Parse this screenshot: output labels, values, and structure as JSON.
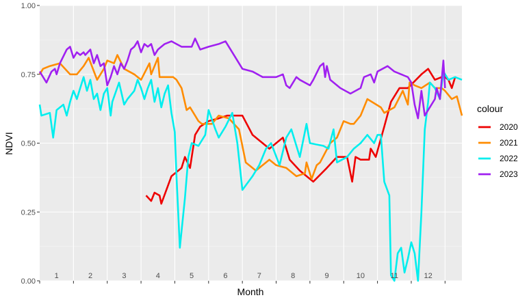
{
  "chart_data": {
    "type": "line",
    "xlabel": "Month",
    "ylabel": "NDVI",
    "xlim": [
      0,
      12.5
    ],
    "ylim": [
      0,
      1
    ],
    "y_ticks": [
      "0.00",
      "0.25",
      "0.50",
      "0.75",
      "1.00"
    ],
    "y_tick_values": [
      0,
      0.25,
      0.5,
      0.75,
      1
    ],
    "month_labels": [
      "1",
      "2",
      "3",
      "4",
      "5",
      "6",
      "7",
      "8",
      "9",
      "10",
      "11",
      "12"
    ],
    "grid": true,
    "legend": {
      "title": "colour",
      "placement": "right"
    },
    "series": [
      {
        "name": "2020",
        "color": "#ee0000",
        "points": [
          [
            3.15,
            0.31
          ],
          [
            3.3,
            0.29
          ],
          [
            3.4,
            0.32
          ],
          [
            3.55,
            0.31
          ],
          [
            3.6,
            0.28
          ],
          [
            3.9,
            0.38
          ],
          [
            4.2,
            0.41
          ],
          [
            4.3,
            0.45
          ],
          [
            4.45,
            0.41
          ],
          [
            4.6,
            0.53
          ],
          [
            4.75,
            0.56
          ],
          [
            5.0,
            0.58
          ],
          [
            5.3,
            0.59
          ],
          [
            5.55,
            0.6
          ],
          [
            6.0,
            0.6
          ],
          [
            6.3,
            0.53
          ],
          [
            6.6,
            0.5
          ],
          [
            6.8,
            0.48
          ],
          [
            7.2,
            0.52
          ],
          [
            7.4,
            0.44
          ],
          [
            7.7,
            0.4
          ],
          [
            8.1,
            0.36
          ],
          [
            8.5,
            0.41
          ],
          [
            8.8,
            0.45
          ],
          [
            9.1,
            0.45
          ],
          [
            9.25,
            0.36
          ],
          [
            9.35,
            0.45
          ],
          [
            9.5,
            0.44
          ],
          [
            9.75,
            0.44
          ],
          [
            9.8,
            0.48
          ],
          [
            9.95,
            0.45
          ],
          [
            10.2,
            0.56
          ],
          [
            10.4,
            0.65
          ],
          [
            10.65,
            0.7
          ],
          [
            10.9,
            0.7
          ],
          [
            11.3,
            0.75
          ],
          [
            11.5,
            0.77
          ],
          [
            11.7,
            0.73
          ],
          [
            11.9,
            0.74
          ],
          [
            12.0,
            0.74
          ],
          [
            12.1,
            0.73
          ],
          [
            12.2,
            0.7
          ],
          [
            12.3,
            0.74
          ]
        ]
      },
      {
        "name": "2021",
        "color": "#ff8c00",
        "points": [
          [
            0,
            0.75
          ],
          [
            0.1,
            0.77
          ],
          [
            0.3,
            0.78
          ],
          [
            0.6,
            0.79
          ],
          [
            0.9,
            0.75
          ],
          [
            1.1,
            0.75
          ],
          [
            1.3,
            0.78
          ],
          [
            1.45,
            0.81
          ],
          [
            1.7,
            0.73
          ],
          [
            1.9,
            0.77
          ],
          [
            2.0,
            0.8
          ],
          [
            2.2,
            0.79
          ],
          [
            2.3,
            0.82
          ],
          [
            2.5,
            0.77
          ],
          [
            2.8,
            0.75
          ],
          [
            3.0,
            0.73
          ],
          [
            3.25,
            0.79
          ],
          [
            3.3,
            0.75
          ],
          [
            3.5,
            0.81
          ],
          [
            3.55,
            0.74
          ],
          [
            3.95,
            0.74
          ],
          [
            4.05,
            0.73
          ],
          [
            4.2,
            0.7
          ],
          [
            4.35,
            0.62
          ],
          [
            4.45,
            0.63
          ],
          [
            4.6,
            0.6
          ],
          [
            4.7,
            0.58
          ],
          [
            4.8,
            0.57
          ],
          [
            5.1,
            0.57
          ],
          [
            5.3,
            0.6
          ],
          [
            5.6,
            0.59
          ],
          [
            5.9,
            0.55
          ],
          [
            6.1,
            0.43
          ],
          [
            6.4,
            0.4
          ],
          [
            6.8,
            0.44
          ],
          [
            7.0,
            0.42
          ],
          [
            7.3,
            0.41
          ],
          [
            7.6,
            0.38
          ],
          [
            7.85,
            0.39
          ],
          [
            7.9,
            0.43
          ],
          [
            8.05,
            0.37
          ],
          [
            8.2,
            0.42
          ],
          [
            8.3,
            0.43
          ],
          [
            8.6,
            0.5
          ],
          [
            8.8,
            0.52
          ],
          [
            9.0,
            0.58
          ],
          [
            9.2,
            0.57
          ],
          [
            9.3,
            0.57
          ],
          [
            9.5,
            0.6
          ],
          [
            9.7,
            0.66
          ],
          [
            10.1,
            0.63
          ],
          [
            10.2,
            0.61
          ],
          [
            10.5,
            0.63
          ],
          [
            10.75,
            0.69
          ],
          [
            10.9,
            0.64
          ],
          [
            10.95,
            0.72
          ],
          [
            11.1,
            0.71
          ],
          [
            11.3,
            0.7
          ],
          [
            11.55,
            0.72
          ],
          [
            11.7,
            0.7
          ],
          [
            11.9,
            0.7
          ],
          [
            12.0,
            0.69
          ],
          [
            12.2,
            0.66
          ],
          [
            12.35,
            0.67
          ],
          [
            12.5,
            0.6
          ]
        ]
      },
      {
        "name": "2022",
        "color": "#00eeee",
        "points": [
          [
            0,
            0.64
          ],
          [
            0.05,
            0.6
          ],
          [
            0.3,
            0.61
          ],
          [
            0.4,
            0.52
          ],
          [
            0.5,
            0.62
          ],
          [
            0.7,
            0.64
          ],
          [
            0.8,
            0.6
          ],
          [
            0.9,
            0.65
          ],
          [
            1.0,
            0.69
          ],
          [
            1.1,
            0.66
          ],
          [
            1.2,
            0.7
          ],
          [
            1.3,
            0.74
          ],
          [
            1.4,
            0.69
          ],
          [
            1.5,
            0.73
          ],
          [
            1.6,
            0.66
          ],
          [
            1.7,
            0.68
          ],
          [
            1.8,
            0.62
          ],
          [
            1.9,
            0.68
          ],
          [
            2.0,
            0.7
          ],
          [
            2.1,
            0.6
          ],
          [
            2.15,
            0.65
          ],
          [
            2.35,
            0.72
          ],
          [
            2.5,
            0.64
          ],
          [
            2.6,
            0.66
          ],
          [
            2.8,
            0.69
          ],
          [
            2.9,
            0.73
          ],
          [
            3.0,
            0.7
          ],
          [
            3.1,
            0.66
          ],
          [
            3.2,
            0.7
          ],
          [
            3.3,
            0.73
          ],
          [
            3.4,
            0.65
          ],
          [
            3.5,
            0.7
          ],
          [
            3.6,
            0.63
          ],
          [
            3.7,
            0.68
          ],
          [
            3.8,
            0.71
          ],
          [
            3.9,
            0.61
          ],
          [
            4.0,
            0.54
          ],
          [
            4.05,
            0.38
          ],
          [
            4.15,
            0.12
          ],
          [
            4.3,
            0.3
          ],
          [
            4.4,
            0.45
          ],
          [
            4.5,
            0.5
          ],
          [
            4.7,
            0.49
          ],
          [
            4.9,
            0.53
          ],
          [
            5.0,
            0.62
          ],
          [
            5.2,
            0.55
          ],
          [
            5.3,
            0.52
          ],
          [
            5.5,
            0.56
          ],
          [
            5.7,
            0.61
          ],
          [
            5.85,
            0.5
          ],
          [
            6.0,
            0.33
          ],
          [
            6.3,
            0.38
          ],
          [
            6.5,
            0.42
          ],
          [
            6.7,
            0.48
          ],
          [
            6.85,
            0.5
          ],
          [
            7.1,
            0.42
          ],
          [
            7.3,
            0.52
          ],
          [
            7.45,
            0.55
          ],
          [
            7.7,
            0.45
          ],
          [
            7.9,
            0.57
          ],
          [
            8.0,
            0.5
          ],
          [
            8.4,
            0.49
          ],
          [
            8.55,
            0.48
          ],
          [
            8.7,
            0.55
          ],
          [
            8.8,
            0.43
          ],
          [
            9.1,
            0.45
          ],
          [
            9.3,
            0.48
          ],
          [
            9.5,
            0.5
          ],
          [
            9.7,
            0.53
          ],
          [
            9.9,
            0.5
          ],
          [
            10.0,
            0.53
          ],
          [
            10.1,
            0.53
          ],
          [
            10.2,
            0.36
          ],
          [
            10.35,
            0.31
          ],
          [
            10.4,
            0.02
          ],
          [
            10.5,
            0.0
          ],
          [
            10.55,
            0.05
          ],
          [
            10.6,
            0.1
          ],
          [
            10.7,
            0.12
          ],
          [
            10.8,
            0.03
          ],
          [
            10.9,
            0.08
          ],
          [
            11.0,
            0.14
          ],
          [
            11.1,
            0.1
          ],
          [
            11.2,
            0.0
          ],
          [
            11.3,
            0.25
          ],
          [
            11.4,
            0.55
          ],
          [
            11.5,
            0.65
          ],
          [
            11.55,
            0.72
          ],
          [
            11.7,
            0.7
          ],
          [
            11.85,
            0.66
          ],
          [
            11.95,
            0.76
          ],
          [
            12.1,
            0.73
          ],
          [
            12.3,
            0.74
          ],
          [
            12.5,
            0.73
          ]
        ]
      },
      {
        "name": "2023",
        "color": "#a020f0",
        "points": [
          [
            0,
            0.76
          ],
          [
            0.2,
            0.72
          ],
          [
            0.35,
            0.76
          ],
          [
            0.45,
            0.77
          ],
          [
            0.5,
            0.75
          ],
          [
            0.6,
            0.79
          ],
          [
            0.8,
            0.84
          ],
          [
            0.9,
            0.85
          ],
          [
            1.0,
            0.81
          ],
          [
            1.1,
            0.83
          ],
          [
            1.2,
            0.82
          ],
          [
            1.3,
            0.83
          ],
          [
            1.35,
            0.82
          ],
          [
            1.5,
            0.84
          ],
          [
            1.6,
            0.79
          ],
          [
            1.7,
            0.82
          ],
          [
            1.8,
            0.78
          ],
          [
            1.9,
            0.79
          ],
          [
            2.0,
            0.71
          ],
          [
            2.1,
            0.74
          ],
          [
            2.2,
            0.78
          ],
          [
            2.3,
            0.75
          ],
          [
            2.4,
            0.79
          ],
          [
            2.5,
            0.77
          ],
          [
            2.6,
            0.8
          ],
          [
            2.7,
            0.84
          ],
          [
            2.8,
            0.85
          ],
          [
            2.9,
            0.87
          ],
          [
            3.0,
            0.83
          ],
          [
            3.1,
            0.86
          ],
          [
            3.2,
            0.85
          ],
          [
            3.3,
            0.86
          ],
          [
            3.4,
            0.82
          ],
          [
            3.5,
            0.84
          ],
          [
            3.6,
            0.85
          ],
          [
            3.7,
            0.86
          ],
          [
            3.9,
            0.87
          ],
          [
            4.2,
            0.85
          ],
          [
            4.5,
            0.85
          ],
          [
            4.6,
            0.88
          ],
          [
            4.75,
            0.84
          ],
          [
            5.0,
            0.85
          ],
          [
            5.3,
            0.86
          ],
          [
            5.5,
            0.87
          ],
          [
            6.0,
            0.77
          ],
          [
            6.3,
            0.76
          ],
          [
            6.6,
            0.74
          ],
          [
            7.0,
            0.74
          ],
          [
            7.2,
            0.75
          ],
          [
            7.3,
            0.71
          ],
          [
            7.4,
            0.7
          ],
          [
            7.6,
            0.74
          ],
          [
            7.7,
            0.73
          ],
          [
            8.0,
            0.71
          ],
          [
            8.1,
            0.73
          ],
          [
            8.3,
            0.78
          ],
          [
            8.4,
            0.79
          ],
          [
            8.45,
            0.74
          ],
          [
            8.5,
            0.78
          ],
          [
            8.6,
            0.73
          ],
          [
            8.9,
            0.7
          ],
          [
            9.2,
            0.68
          ],
          [
            9.5,
            0.7
          ],
          [
            9.6,
            0.74
          ],
          [
            9.8,
            0.75
          ],
          [
            9.9,
            0.72
          ],
          [
            10.0,
            0.76
          ],
          [
            10.3,
            0.78
          ],
          [
            10.5,
            0.76
          ],
          [
            10.9,
            0.74
          ],
          [
            11.0,
            0.72
          ],
          [
            11.1,
            0.64
          ],
          [
            11.2,
            0.59
          ],
          [
            11.3,
            0.69
          ],
          [
            11.4,
            0.6
          ],
          [
            11.5,
            0.62
          ],
          [
            11.7,
            0.66
          ],
          [
            11.75,
            0.7
          ],
          [
            11.85,
            0.66
          ],
          [
            11.95,
            0.8
          ],
          [
            12.0,
            0.7
          ]
        ]
      }
    ]
  }
}
